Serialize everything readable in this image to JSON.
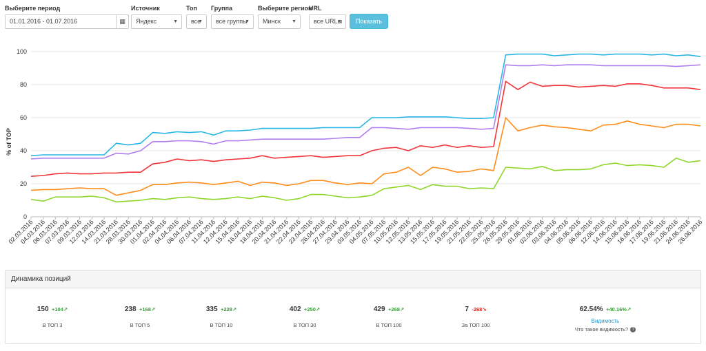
{
  "filters": {
    "period_label": "Выберите период",
    "period_value": "01.01.2016 - 01.07.2016",
    "calendar_icon": "calendar-icon",
    "source_label": "Источник",
    "source_value": "Яндекс",
    "top_label": "Топ",
    "top_value": "все",
    "group_label": "Группа",
    "group_value": "все группы",
    "region_label": "Выберите регион",
    "region_value": "Минск",
    "url_label": "URL",
    "url_value": "все URLы",
    "show_button": "Показать",
    "show_button_color": "#5bc0de"
  },
  "chart_data": {
    "type": "line",
    "ylabel": "% of TOP",
    "ylim": [
      0,
      100
    ],
    "yticks": [
      0,
      20,
      40,
      60,
      80,
      100
    ],
    "grid": true,
    "categories": [
      "02.03.2016",
      "04.03.2016",
      "06.03.2016",
      "07.03.2016",
      "09.03.2016",
      "12.03.2016",
      "14.03.2016",
      "21.03.2016",
      "28.03.2016",
      "30.03.2016",
      "01.04.2016",
      "02.04.2016",
      "04.04.2016",
      "06.04.2016",
      "07.04.2016",
      "11.04.2016",
      "12.04.2016",
      "15.04.2016",
      "16.04.2016",
      "18.04.2016",
      "20.04.2016",
      "21.04.2016",
      "22.04.2016",
      "23.04.2016",
      "26.04.2016",
      "27.04.2016",
      "29.04.2016",
      "03.05.2016",
      "04.05.2016",
      "07.05.2016",
      "10.05.2016",
      "12.05.2016",
      "13.05.2016",
      "15.05.2016",
      "17.05.2016",
      "19.05.2016",
      "21.05.2016",
      "22.05.2016",
      "25.05.2016",
      "26.05.2016",
      "29.05.2016",
      "01.06.2016",
      "02.06.2016",
      "03.06.2016",
      "04.06.2016",
      "05.06.2016",
      "06.06.2016",
      "12.06.2016",
      "14.06.2016",
      "15.06.2016",
      "16.06.2016",
      "17.06.2016",
      "19.06.2016",
      "21.06.2016",
      "24.06.2016",
      "26.06.2016"
    ],
    "series": [
      {
        "color": "#29b6e6",
        "values": [
          37,
          37.5,
          37.5,
          37.5,
          37.5,
          37.5,
          37.5,
          44.5,
          43.5,
          44.5,
          51,
          50.5,
          51.5,
          51,
          51.5,
          49.5,
          52,
          52,
          52.5,
          53.5,
          53.5,
          53.5,
          53.5,
          53.5,
          54,
          54,
          54,
          54,
          60,
          60,
          60,
          60.5,
          60.5,
          60.5,
          60.5,
          60,
          59.5,
          59.5,
          60,
          98,
          98.5,
          98.5,
          98.5,
          97.5,
          98,
          98.5,
          98.5,
          98,
          98.5,
          98.5,
          98.5,
          98,
          98.5,
          97.5,
          98,
          97
        ]
      },
      {
        "color": "#b07ef0",
        "values": [
          35,
          35.5,
          35.5,
          35.5,
          35.5,
          35.5,
          35.5,
          38.5,
          38,
          40,
          45.5,
          45.5,
          46,
          46,
          45.5,
          44,
          46,
          46,
          46.5,
          47,
          47,
          47,
          47,
          47,
          47,
          47.5,
          48,
          48,
          54,
          54,
          53.5,
          53,
          54,
          54,
          54,
          54,
          53.5,
          53,
          53.5,
          92,
          91.5,
          91.5,
          92,
          91.5,
          92,
          92,
          92,
          91.5,
          91.5,
          91.5,
          91.5,
          91.5,
          91.5,
          91,
          91.5,
          92
        ]
      },
      {
        "color": "#f0343a",
        "values": [
          24.5,
          25,
          26,
          26.5,
          26,
          26,
          26.5,
          26.5,
          27,
          27,
          32,
          33,
          35,
          34,
          34.5,
          33.5,
          34.5,
          35,
          35.5,
          37,
          35.5,
          36,
          36.5,
          37,
          36,
          36.5,
          37,
          37,
          40,
          41.5,
          42,
          40,
          43,
          42,
          43.5,
          42,
          43,
          42,
          42.5,
          82,
          77,
          81.5,
          79,
          79.5,
          79.5,
          78.5,
          79,
          79.5,
          79,
          80.5,
          80.5,
          79.5,
          78,
          78,
          78,
          77
        ]
      },
      {
        "color": "#ff8c1a",
        "values": [
          16,
          16.5,
          16.5,
          17,
          17.5,
          17,
          17,
          13,
          14.5,
          16,
          19.5,
          19.5,
          20.5,
          21,
          20.5,
          19.5,
          20.5,
          21.5,
          19,
          21,
          20.5,
          19,
          20,
          22,
          22,
          20.5,
          19.5,
          20.5,
          20,
          26,
          27,
          30,
          25,
          30,
          29,
          27,
          27.5,
          29,
          28,
          60,
          52,
          54,
          55.5,
          54.5,
          54,
          53,
          52,
          55.5,
          56,
          58,
          56,
          55,
          54,
          56,
          56,
          55
        ]
      },
      {
        "color": "#8fd62b",
        "values": [
          10.5,
          9.5,
          12,
          12,
          12,
          12.5,
          11.5,
          9,
          9.5,
          10,
          11,
          10.5,
          11.5,
          12,
          11,
          10.5,
          11,
          12,
          11,
          12.5,
          11.5,
          10,
          11,
          13.5,
          13.5,
          12.5,
          11.5,
          12,
          13,
          17,
          18,
          19,
          16.5,
          19.5,
          18.5,
          18.5,
          17,
          17.5,
          17,
          30,
          29.5,
          29,
          30.5,
          28,
          28.5,
          28.5,
          29,
          31.5,
          32.5,
          31,
          31.5,
          31,
          30,
          35.5,
          33,
          34
        ]
      }
    ]
  },
  "stats": {
    "title": "Динамика позиций",
    "items": [
      {
        "value": "150",
        "delta": "+104",
        "dir": "up",
        "label": "В ТОП 3"
      },
      {
        "value": "238",
        "delta": "+168",
        "dir": "up",
        "label": "В ТОП 5"
      },
      {
        "value": "335",
        "delta": "+228",
        "dir": "up",
        "label": "В ТОП 10"
      },
      {
        "value": "402",
        "delta": "+250",
        "dir": "up",
        "label": "В ТОП 30"
      },
      {
        "value": "429",
        "delta": "+268",
        "dir": "up",
        "label": "В ТОП 100"
      },
      {
        "value": "7",
        "delta": "-268",
        "dir": "down",
        "label": "За ТОП 100"
      }
    ],
    "visibility": {
      "value": "62.54%",
      "delta": "+40.16%",
      "link": "Видимость",
      "help": "Что такое видимость?"
    },
    "up_arrow": "↗",
    "down_arrow": "↘"
  }
}
